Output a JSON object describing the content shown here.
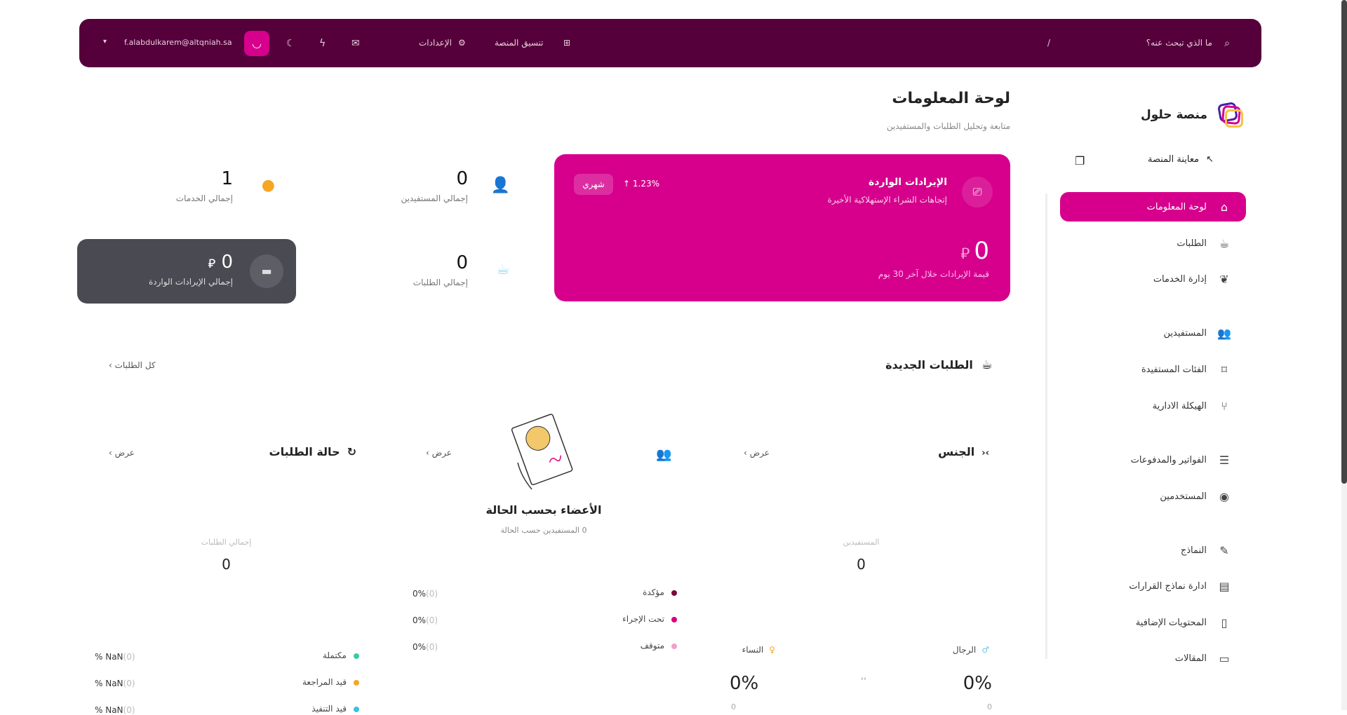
{
  "header": {
    "search_placeholder": "ما الذي تبحث عنه؟",
    "shortcut": "/",
    "platform_layout": "تنسيق المنصة",
    "settings": "الإعدادات",
    "user_email": "f.alabdulkarem@altqniah.sa",
    "icons": [
      "search-icon",
      "layout-icon",
      "gear-icon",
      "inbox-icon",
      "bolt-icon",
      "moon-icon",
      "avatar",
      "chevron-down-icon"
    ]
  },
  "brand": {
    "name": "منصة حلول"
  },
  "sidebar": {
    "preview": "معاينة المنصة",
    "items": [
      {
        "label": "لوحة المعلومات",
        "active": true
      },
      {
        "label": "الطلبات"
      },
      {
        "label": "إدارة الخدمات"
      },
      {
        "label": "المستفيدين"
      },
      {
        "label": "الفئات المستفيدة"
      },
      {
        "label": "الهيكلة الادارية"
      },
      {
        "label": "الفواتير والمدفوعات"
      },
      {
        "label": "المستخدمين"
      },
      {
        "label": "النماذج"
      },
      {
        "label": "ادارة نماذج القرارات"
      },
      {
        "label": "المحتويات الإضافية"
      },
      {
        "label": "المقالات"
      }
    ]
  },
  "page": {
    "title": "لوحة المعلومات",
    "subtitle": "متابعة وتحليل الطلبات والمستفيدين"
  },
  "revenue_card": {
    "title": "الإيرادات الواردة",
    "subtitle": "إتجاهات الشراء الإستهلاكية الأخيرة",
    "change": "1.23%",
    "period": "شهري",
    "value": "0",
    "caption": "قيمة الإيرادات خلال آخر 30 يوم",
    "color": "#d6008d"
  },
  "stats": {
    "beneficiaries": {
      "value": "0",
      "label": "إجمالي المستفيدين"
    },
    "services": {
      "value": "1",
      "label": "إجمالي الخدمات"
    },
    "requests": {
      "value": "0",
      "label": "إجمالي الطلبات"
    },
    "revenue": {
      "value": "0",
      "label": "إجمالي الإيرادات الواردة"
    }
  },
  "new_requests": {
    "title": "الطلبات الجديدة",
    "all_link": "كل الطلبات"
  },
  "gender": {
    "title": "الجنس",
    "view": "عرض",
    "center_label": "المستفيدين",
    "center_value": "0",
    "men": {
      "label": "الرجال",
      "pct": "0%",
      "count": "0"
    },
    "women": {
      "label": "النساء",
      "pct": "0%",
      "count": "0"
    }
  },
  "members": {
    "view": "عرض",
    "title": "الأعضاء بحسب الحالة",
    "subtitle": "0 المستفيدين حسب الحالة",
    "legend": [
      {
        "label": "مؤكدة",
        "count": "(0)",
        "pct": "0%",
        "color": "#7a0a3d"
      },
      {
        "label": "تحت الإجراء",
        "count": "(0)",
        "pct": "0%",
        "color": "#d6007a"
      },
      {
        "label": "متوقف",
        "count": "(0)",
        "pct": "0%",
        "color": "#f2a0c8"
      }
    ]
  },
  "status": {
    "title": "حالة الطلبات",
    "view": "عرض",
    "center_label": "إجمالي الطلبات",
    "center_value": "0",
    "legend": [
      {
        "label": "مكتملة",
        "count": "(0)",
        "pct": "% NaN",
        "color": "#3cc9a8"
      },
      {
        "label": "قيد المراجعة",
        "count": "(0)",
        "pct": "% NaN",
        "color": "#f5a623"
      },
      {
        "label": "قيد التنفيذ",
        "count": "(0)",
        "pct": "% NaN",
        "color": "#3cc1e0"
      }
    ]
  }
}
